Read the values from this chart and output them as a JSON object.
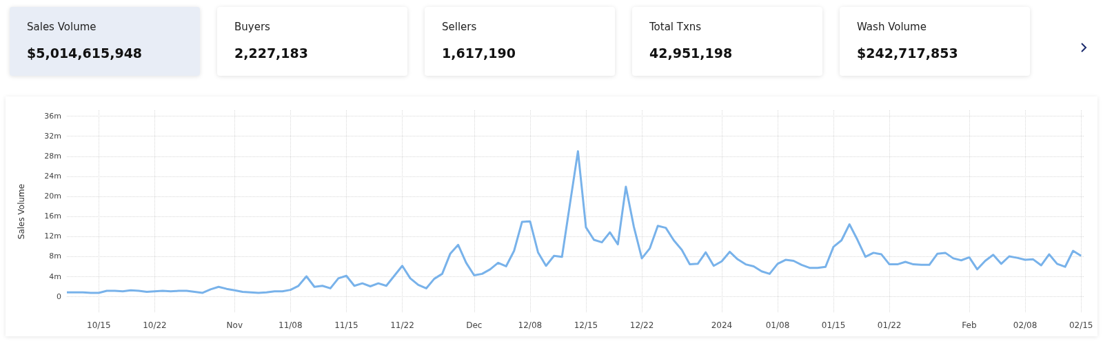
{
  "chart_data": [
    {
      "type": "other",
      "categories": [
        "Sales Volume",
        "Buyers",
        "Sellers",
        "Total Txns",
        "Wash Volume"
      ],
      "value_labels": [
        "$5,014,615,948",
        "2,227,183",
        "1,617,190",
        "42,951,198",
        "$242,717,853"
      ],
      "colors": [
        "#e8edf6",
        "#ffffff",
        "#ffffff",
        "#ffffff",
        "#ffffff"
      ]
    },
    {
      "type": "line",
      "ylabel": "Sales Volume",
      "x": [
        "2023-10-11",
        "2023-10-12",
        "2023-10-13",
        "2023-10-14",
        "2023-10-15",
        "2023-10-16",
        "2023-10-17",
        "2023-10-18",
        "2023-10-19",
        "2023-10-20",
        "2023-10-21",
        "2023-10-22",
        "2023-10-23",
        "2023-10-24",
        "2023-10-25",
        "2023-10-26",
        "2023-10-27",
        "2023-10-28",
        "2023-10-29",
        "2023-10-30",
        "2023-10-31",
        "2023-11-01",
        "2023-11-02",
        "2023-11-03",
        "2023-11-04",
        "2023-11-05",
        "2023-11-06",
        "2023-11-07",
        "2023-11-08",
        "2023-11-09",
        "2023-11-10",
        "2023-11-11",
        "2023-11-12",
        "2023-11-13",
        "2023-11-14",
        "2023-11-15",
        "2023-11-16",
        "2023-11-17",
        "2023-11-18",
        "2023-11-19",
        "2023-11-20",
        "2023-11-21",
        "2023-11-22",
        "2023-11-23",
        "2023-11-24",
        "2023-11-25",
        "2023-11-26",
        "2023-11-27",
        "2023-11-28",
        "2023-11-29",
        "2023-11-30",
        "2023-12-01",
        "2023-12-02",
        "2023-12-03",
        "2023-12-04",
        "2023-12-05",
        "2023-12-06",
        "2023-12-07",
        "2023-12-08",
        "2023-12-09",
        "2023-12-10",
        "2023-12-11",
        "2023-12-12",
        "2023-12-13",
        "2023-12-14",
        "2023-12-15",
        "2023-12-16",
        "2023-12-17",
        "2023-12-18",
        "2023-12-19",
        "2023-12-20",
        "2023-12-21",
        "2023-12-22",
        "2023-12-23",
        "2023-12-24",
        "2023-12-25",
        "2023-12-26",
        "2023-12-27",
        "2023-12-28",
        "2023-12-29",
        "2023-12-30",
        "2023-12-31",
        "2024-01-01",
        "2024-01-02",
        "2024-01-03",
        "2024-01-04",
        "2024-01-05",
        "2024-01-06",
        "2024-01-07",
        "2024-01-08",
        "2024-01-09",
        "2024-01-10",
        "2024-01-11",
        "2024-01-12",
        "2024-01-13",
        "2024-01-14",
        "2024-01-15",
        "2024-01-16",
        "2024-01-17",
        "2024-01-18",
        "2024-01-19",
        "2024-01-20",
        "2024-01-21",
        "2024-01-22",
        "2024-01-23",
        "2024-01-24",
        "2024-01-25",
        "2024-01-26",
        "2024-01-27",
        "2024-01-28",
        "2024-01-29",
        "2024-01-30",
        "2024-01-31",
        "2024-02-01",
        "2024-02-02",
        "2024-02-03",
        "2024-02-04",
        "2024-02-05",
        "2024-02-06",
        "2024-02-07",
        "2024-02-08",
        "2024-02-09",
        "2024-02-10",
        "2024-02-11",
        "2024-02-12",
        "2024-02-13",
        "2024-02-14",
        "2024-02-15"
      ],
      "series": [
        {
          "color": "#78b2ea",
          "values": [
            0.8,
            0.8,
            0.8,
            0.7,
            0.7,
            1.1,
            1.1,
            1.0,
            1.2,
            1.1,
            0.9,
            1.0,
            1.1,
            1.0,
            1.1,
            1.1,
            0.9,
            0.7,
            1.4,
            1.9,
            1.5,
            1.2,
            0.9,
            0.8,
            0.7,
            0.8,
            1.0,
            1.0,
            1.3,
            2.1,
            4.0,
            1.9,
            2.1,
            1.6,
            3.6,
            4.1,
            2.1,
            2.6,
            2.0,
            2.6,
            2.1,
            4.1,
            6.1,
            3.6,
            2.3,
            1.6,
            3.5,
            4.5,
            8.5,
            10.3,
            6.7,
            4.2,
            4.5,
            5.4,
            6.7,
            6.0,
            9.1,
            14.9,
            15.0,
            8.8,
            6.1,
            8.1,
            7.9,
            18.5,
            29.0,
            13.8,
            11.3,
            10.8,
            12.8,
            10.4,
            21.9,
            13.9,
            7.6,
            9.6,
            14.1,
            13.7,
            11.2,
            9.3,
            6.4,
            6.5,
            8.8,
            6.1,
            7.0,
            8.9,
            7.4,
            6.4,
            6.0,
            5.0,
            4.5,
            6.5,
            7.3,
            7.1,
            6.3,
            5.7,
            5.7,
            5.9,
            9.9,
            11.2,
            14.4,
            11.3,
            7.9,
            8.7,
            8.4,
            6.4,
            6.4,
            6.9,
            6.4,
            6.3,
            6.3,
            8.5,
            8.7,
            7.6,
            7.2,
            7.8,
            5.4,
            7.1,
            8.3,
            6.5,
            8.0,
            7.7,
            7.3,
            7.4,
            6.2,
            8.4,
            6.5,
            5.9,
            9.1,
            8.1
          ]
        }
      ],
      "xlim": [
        "2023-10-11",
        "2024-02-15T10:00"
      ],
      "xticks": [
        {
          "value": "2023-10-15",
          "label": "10/15"
        },
        {
          "value": "2023-10-22",
          "label": "10/22"
        },
        {
          "value": "2023-11-01",
          "label": "Nov"
        },
        {
          "value": "2023-11-08",
          "label": "11/08"
        },
        {
          "value": "2023-11-15",
          "label": "11/15"
        },
        {
          "value": "2023-11-22",
          "label": "11/22"
        },
        {
          "value": "2023-12-01",
          "label": "Dec"
        },
        {
          "value": "2023-12-08",
          "label": "12/08"
        },
        {
          "value": "2023-12-15",
          "label": "12/15"
        },
        {
          "value": "2023-12-22",
          "label": "12/22"
        },
        {
          "value": "2024-01-01",
          "label": "2024"
        },
        {
          "value": "2024-01-08",
          "label": "01/08"
        },
        {
          "value": "2024-01-15",
          "label": "01/15"
        },
        {
          "value": "2024-01-22",
          "label": "01/22"
        },
        {
          "value": "2024-02-01",
          "label": "Feb"
        },
        {
          "value": "2024-02-08",
          "label": "02/08"
        },
        {
          "value": "2024-02-15",
          "label": "02/15"
        }
      ],
      "ylim": [
        -3.3,
        37.2
      ],
      "yticks": [
        {
          "value": 0,
          "label": "0"
        },
        {
          "value": 4,
          "label": "4m"
        },
        {
          "value": 8,
          "label": "8m"
        },
        {
          "value": 12,
          "label": "12m"
        },
        {
          "value": 16,
          "label": "16m"
        },
        {
          "value": 20,
          "label": "20m"
        },
        {
          "value": 24,
          "label": "24m"
        },
        {
          "value": 28,
          "label": "28m"
        },
        {
          "value": 32,
          "label": "32m"
        },
        {
          "value": 36,
          "label": "36m"
        }
      ],
      "grid": true,
      "marker": "none",
      "line_style": "solid"
    }
  ]
}
